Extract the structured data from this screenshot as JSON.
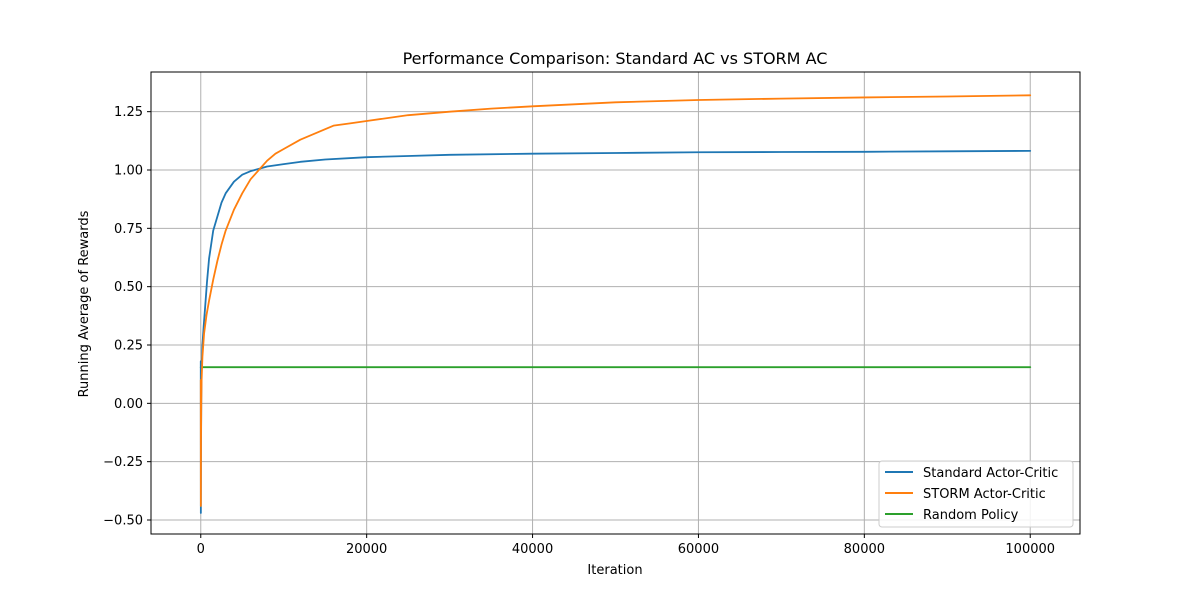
{
  "chart_data": {
    "type": "line",
    "title": "Performance Comparison: Standard AC vs STORM AC",
    "xlabel": "Iteration",
    "ylabel": "Running Average of Rewards",
    "xlim": [
      -6000,
      106000
    ],
    "ylim": [
      -0.56,
      1.42
    ],
    "grid": true,
    "legend_position": "lower-right",
    "x_ticks": [
      0,
      20000,
      40000,
      60000,
      80000,
      100000
    ],
    "x_tick_labels": [
      "0",
      "20000",
      "40000",
      "60000",
      "80000",
      "100000"
    ],
    "y_ticks": [
      -0.5,
      -0.25,
      0.0,
      0.25,
      0.5,
      0.75,
      1.0,
      1.25
    ],
    "y_tick_labels": [
      "−0.50",
      "−0.25",
      "0.00",
      "0.25",
      "0.50",
      "0.75",
      "1.00",
      "1.25"
    ],
    "series": [
      {
        "name": "Standard Actor-Critic",
        "color": "#1f77b4",
        "x": [
          0,
          10,
          30,
          60,
          100,
          200,
          350,
          500,
          750,
          1000,
          1500,
          2000,
          2500,
          3000,
          4000,
          5000,
          6000,
          7000,
          8000,
          10000,
          12000,
          15000,
          20000,
          25000,
          30000,
          40000,
          50000,
          60000,
          70000,
          80000,
          90000,
          100000
        ],
        "values": [
          0.18,
          -0.47,
          -0.2,
          0.02,
          0.15,
          0.25,
          0.33,
          0.4,
          0.52,
          0.62,
          0.74,
          0.8,
          0.86,
          0.9,
          0.95,
          0.98,
          0.995,
          1.005,
          1.015,
          1.025,
          1.035,
          1.045,
          1.055,
          1.06,
          1.065,
          1.07,
          1.073,
          1.076,
          1.077,
          1.078,
          1.08,
          1.082
        ]
      },
      {
        "name": "STORM Actor-Critic",
        "color": "#ff7f0e",
        "x": [
          0,
          10,
          30,
          60,
          100,
          200,
          400,
          700,
          1000,
          1500,
          2000,
          2500,
          3000,
          4000,
          5000,
          6000,
          7000,
          8000,
          9000,
          10000,
          12000,
          14000,
          16000,
          18000,
          20000,
          25000,
          30000,
          35000,
          40000,
          50000,
          60000,
          70000,
          80000,
          90000,
          100000
        ],
        "values": [
          0.1,
          -0.44,
          -0.15,
          0.0,
          0.1,
          0.2,
          0.3,
          0.38,
          0.44,
          0.53,
          0.61,
          0.68,
          0.74,
          0.83,
          0.9,
          0.96,
          1.0,
          1.04,
          1.07,
          1.09,
          1.13,
          1.16,
          1.19,
          1.2,
          1.21,
          1.235,
          1.25,
          1.263,
          1.273,
          1.29,
          1.3,
          1.306,
          1.311,
          1.315,
          1.32
        ]
      },
      {
        "name": "Random Policy",
        "color": "#2ca02c",
        "x": [
          0,
          100000
        ],
        "values": [
          0.155,
          0.155
        ]
      }
    ]
  }
}
